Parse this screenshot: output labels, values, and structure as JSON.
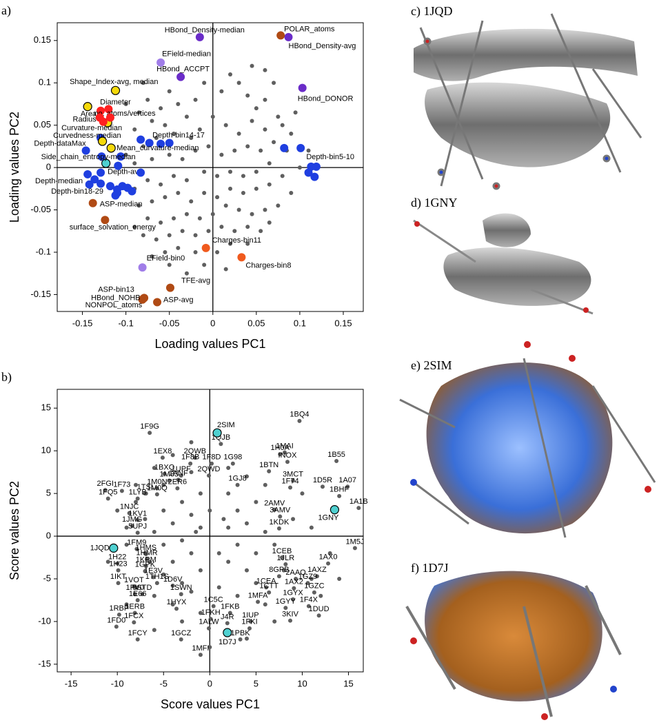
{
  "chart_data": [
    {
      "type": "scatter",
      "panel_label": "a)",
      "xlabel": "Loading values PC1",
      "ylabel": "Loading values PC2",
      "xlim": [
        -0.179,
        0.173
      ],
      "ylim": [
        -0.17,
        0.171
      ],
      "xticks": [
        -0.15,
        -0.1,
        -0.05,
        0,
        0.05,
        0.1,
        0.15
      ],
      "yticks": [
        -0.15,
        -0.1,
        -0.05,
        0,
        0.05,
        0.1,
        0.15
      ],
      "zero_lines": true,
      "series": [
        {
          "color": "#5f5f5f",
          "marker": "small",
          "x": [
            -0.085,
            -0.075,
            -0.06,
            -0.07,
            -0.09,
            -0.05,
            -0.04,
            -0.03,
            -0.02,
            -0.01,
            0.01,
            0.02,
            0.03,
            0.04,
            0.05,
            0.06,
            0.07,
            0.075,
            0.08,
            0.06,
            0.045,
            0.03,
            0.015,
            0.0,
            -0.015,
            -0.025,
            -0.045,
            -0.055,
            -0.065,
            -0.08,
            -0.1,
            -0.09,
            -0.07,
            -0.05,
            -0.035,
            -0.02,
            -0.005,
            0.01,
            0.025,
            0.04,
            0.055,
            0.07,
            0.085,
            0.09,
            0.065,
            0.05,
            0.035,
            0.02,
            0.005,
            -0.01,
            -0.03,
            -0.045,
            -0.06,
            -0.075,
            -0.09,
            -0.085,
            -0.07,
            -0.055,
            -0.04,
            -0.025,
            -0.01,
            0.005,
            0.02,
            0.035,
            0.05,
            0.065,
            0.08,
            0.09,
            0.075,
            0.06,
            0.045,
            0.03,
            0.015,
            0.0,
            -0.015,
            -0.03,
            -0.045,
            -0.06,
            -0.075,
            -0.09,
            -0.08,
            -0.065,
            -0.05,
            -0.035,
            -0.02,
            -0.005,
            0.01,
            0.025,
            0.04,
            0.055,
            0.065,
            0.02,
            0.005,
            -0.02,
            -0.04,
            -0.055,
            -0.07,
            0.04,
            0.015,
            -0.01,
            -0.03,
            -0.05,
            0.06,
            0.045,
            -0.08,
            -0.1,
            0.095,
            0.1,
            0.11
          ],
          "values": [
            0.065,
            0.08,
            0.07,
            0.055,
            0.045,
            0.09,
            0.075,
            0.06,
            0.08,
            0.1,
            0.09,
            0.11,
            0.1,
            0.085,
            0.07,
            0.08,
            0.1,
            0.06,
            0.05,
            0.045,
            0.055,
            0.04,
            0.05,
            0.06,
            0.045,
            0.035,
            0.04,
            0.05,
            0.035,
            0.025,
            0.015,
            0.005,
            0.01,
            0.015,
            0.01,
            0.02,
            0.025,
            0.015,
            0.02,
            0.025,
            0.02,
            0.03,
            0.02,
            0.04,
            0.005,
            -0.005,
            -0.01,
            -0.005,
            -0.01,
            -0.005,
            -0.015,
            -0.01,
            -0.02,
            -0.015,
            -0.025,
            -0.045,
            -0.04,
            -0.035,
            -0.03,
            -0.04,
            -0.03,
            -0.035,
            -0.025,
            -0.03,
            -0.025,
            -0.02,
            -0.01,
            -0.03,
            -0.045,
            -0.05,
            -0.055,
            -0.05,
            -0.045,
            -0.055,
            -0.06,
            -0.055,
            -0.06,
            -0.065,
            -0.06,
            -0.07,
            -0.08,
            -0.085,
            -0.08,
            -0.075,
            -0.08,
            -0.075,
            -0.07,
            -0.075,
            -0.07,
            -0.075,
            -0.065,
            -0.09,
            -0.1,
            -0.1,
            -0.095,
            -0.1,
            -0.105,
            -0.09,
            -0.12,
            -0.115,
            -0.125,
            -0.115,
            0.115,
            0.12,
            0.1,
            0.075,
            0.065,
            0.0,
            0.02
          ]
        },
        {
          "color": "#1f3fe0",
          "marker": "large",
          "x": [
            -0.146,
            -0.06,
            0.113,
            -0.129,
            -0.144,
            -0.11,
            -0.129,
            -0.083,
            -0.073,
            -0.05,
            -0.128,
            -0.109,
            -0.136,
            -0.142,
            -0.129,
            -0.118,
            -0.11,
            -0.104,
            -0.098,
            -0.093,
            -0.112,
            -0.083,
            0.082,
            0.101,
            0.119,
            0.11,
            0.117,
            -0.106
          ],
          "values": [
            0.02,
            0.028,
            0.001,
            -0.006,
            -0.008,
            -0.03,
            0.035,
            0.033,
            0.029,
            0.029,
            0.013,
            0.002,
            -0.014,
            -0.02,
            -0.019,
            -0.022,
            -0.026,
            -0.022,
            -0.024,
            -0.028,
            -0.033,
            -0.006,
            0.023,
            0.023,
            0.001,
            -0.006,
            -0.011,
            0.013
          ],
          "labels": [
            "Depth-dataMax",
            "Depth-bin14-17",
            "Depth-bin5-10",
            "Depth-av",
            "Depth-median",
            "Depth-bin18-29",
            null,
            null,
            null,
            null,
            null,
            null,
            null,
            null,
            null,
            null,
            null,
            null,
            null,
            null,
            null,
            null,
            null,
            null,
            null,
            null,
            null,
            null
          ]
        },
        {
          "color": "#f5d90a",
          "edgecolor": "#000000",
          "marker": "large",
          "x": [
            -0.112,
            -0.144,
            -0.121,
            -0.127,
            -0.117
          ],
          "values": [
            0.091,
            0.072,
            0.053,
            0.031,
            0.023
          ],
          "labels": [
            "Shape_Index-avg, median",
            "Diameter",
            "Curvature-median",
            "Curvedness-median",
            "Mean_curvature-median"
          ]
        },
        {
          "color": "#ff2020",
          "marker": "large",
          "x": [
            -0.129,
            -0.12,
            -0.13,
            -0.126,
            -0.118
          ],
          "values": [
            0.067,
            0.069,
            0.059,
            0.054,
            0.059
          ],
          "labels": [
            "Area",
            "no. atoms/vertices",
            "Radius",
            null,
            null
          ]
        },
        {
          "color": "#4fd0d0",
          "edgecolor": "#000000",
          "marker": "large",
          "x": [
            -0.123
          ],
          "values": [
            0.005
          ],
          "labels": [
            "Side_chain_entropy-median"
          ]
        },
        {
          "color": "#6a2cc8",
          "marker": "large",
          "x": [
            -0.015,
            0.087,
            -0.037,
            0.103
          ],
          "values": [
            0.154,
            0.154,
            0.107,
            0.094
          ],
          "labels": [
            "HBond_Density-median",
            "HBond_Density-avg",
            "HBond_ACCPT",
            "HBond_DONOR"
          ]
        },
        {
          "color": "#a07de8",
          "marker": "large",
          "x": [
            -0.06,
            -0.081
          ],
          "values": [
            0.124,
            -0.118
          ],
          "labels": [
            "EField-median",
            "EField-bin0"
          ]
        },
        {
          "color": "#f05a1e",
          "marker": "large",
          "x": [
            -0.008,
            0.033
          ],
          "values": [
            -0.095,
            -0.106
          ],
          "labels": [
            "Charges-bin11",
            "Charges-bin8"
          ]
        },
        {
          "color": "#b04a14",
          "marker": "large",
          "x": [
            0.078,
            -0.138,
            -0.124,
            -0.049,
            -0.08,
            -0.064,
            -0.081,
            -0.079
          ],
          "values": [
            0.156,
            -0.042,
            -0.062,
            -0.142,
            -0.155,
            -0.159,
            -0.156,
            -0.154
          ],
          "labels": [
            "POLAR_atoms",
            "ASP-median",
            "surface_solvation_energy",
            "TFE-avg",
            "ASP-bin13",
            "ASP-avg",
            "HBond_NOHB",
            "NONPOL_atoms"
          ]
        }
      ]
    },
    {
      "type": "scatter",
      "panel_label": "b)",
      "xlabel": "Score values PC1",
      "ylabel": "Score values PC2",
      "xlim": [
        -16.5,
        16.6
      ],
      "ylim": [
        -15.9,
        17.2
      ],
      "xticks": [
        -15,
        -10,
        -5,
        0,
        5,
        10,
        15
      ],
      "yticks": [
        -15,
        -10,
        -5,
        0,
        5,
        10,
        15
      ],
      "zero_lines": true,
      "series": [
        {
          "color": "#5f5f5f",
          "marker": "small",
          "x": [
            -8,
            -6,
            -4,
            -2,
            -1,
            -3,
            -5,
            -7,
            -9,
            -6,
            -4,
            -2,
            0,
            -1,
            -3,
            -5,
            -7,
            -4,
            -2,
            -1,
            -3,
            -5,
            -6,
            -4,
            -2,
            -1,
            2,
            3,
            4,
            5,
            6,
            2,
            3,
            5,
            6,
            4,
            2,
            1,
            3,
            5,
            6,
            2,
            4,
            -8,
            -10,
            -9,
            -11,
            -8,
            -9,
            -6,
            -3,
            1,
            7,
            8,
            11,
            12,
            9,
            10,
            11,
            13,
            -5,
            -7,
            -2,
            0,
            4,
            -1.5,
            1.5,
            -6.5,
            7,
            14
          ],
          "values": [
            6,
            8,
            9.5,
            7.5,
            5,
            4,
            3,
            2,
            1,
            0.5,
            1.5,
            2.5,
            3,
            1,
            -0.5,
            -1,
            -2,
            -3,
            -2,
            -4,
            -5.5,
            -4.5,
            -7,
            -8,
            -6.5,
            -9,
            5,
            3,
            1.5,
            4,
            6,
            1,
            -1,
            -2,
            0.5,
            -4,
            -3,
            -6,
            -7,
            -5.5,
            -8,
            8,
            7,
            4,
            3,
            -1,
            -3,
            -6,
            -8,
            -11,
            -10,
            -2,
            -1,
            -4,
            -5,
            -7,
            2,
            5,
            1,
            -2,
            6,
            5,
            11,
            -13,
            -12,
            0.5,
            2,
            -3,
            -10,
            -5
          ]
        },
        {
          "color": "#5f5f5f",
          "marker": "small",
          "x": [
            -6.5,
            9.7,
            1.2,
            8.1,
            7.6,
            8.4,
            13.7,
            -5.1,
            -1.6,
            -2.1,
            0.2,
            2.5,
            6.4,
            -0.1,
            -4.9,
            -4.4,
            -3.1,
            9.0,
            3.0,
            -3.4,
            8.7,
            12.2,
            14.9,
            -5.7,
            -3.5,
            -5.7,
            -6.9,
            -11.3,
            -9.5,
            14.0,
            -11.0,
            -7.8,
            16.1,
            7.0,
            7.6,
            -8.7,
            -7.8,
            -8.4,
            7.5,
            -7.8,
            -7.9,
            15.7,
            -6.9,
            -6.8,
            7.8,
            12.8,
            8.2,
            -10.0,
            -6.9,
            -9.9,
            -7.0,
            7.5,
            9.3,
            11.6,
            -6.1,
            10.6,
            -5.7,
            -9.9,
            -8.2,
            -4.0,
            6.1,
            9.1,
            11.3,
            -8.1,
            -7.3,
            -3.1,
            6.4,
            -7.8,
            9.0,
            5.2,
            0.4,
            8.2,
            10.7,
            -3.6,
            -8.1,
            2.2,
            -9.8,
            11.8,
            0.1,
            8.7,
            -8.2,
            1.9,
            4.4,
            -10.1,
            4.3,
            -0.1,
            -7.8,
            -3.1,
            3.3,
            -1.0
          ],
          "values": [
            12.1,
            13.5,
            10.8,
            9.8,
            9.6,
            8.7,
            8.8,
            9.2,
            9.2,
            8.5,
            8.5,
            8.5,
            7.6,
            7.1,
            7.3,
            6.5,
            7.1,
            6.5,
            6.0,
            6.6,
            5.7,
            5.8,
            5.8,
            5.6,
            5.6,
            4.9,
            5.0,
            5.4,
            5.3,
            4.7,
            4.4,
            4.4,
            3.3,
            3.1,
            2.3,
            2.7,
            1.9,
            1.2,
            0.9,
            0.4,
            -1.5,
            -1.4,
            -2.1,
            -2.7,
            -2.5,
            -3.2,
            -3.3,
            -3.2,
            -3.5,
            -4.0,
            -4.1,
            -4.7,
            -5.0,
            -4.7,
            -4.8,
            -5.5,
            -5.5,
            -5.5,
            -5.9,
            -5.8,
            -6.0,
            -6.1,
            -6.6,
            -6.8,
            -6.8,
            -6.8,
            -6.6,
            -7.5,
            -7.4,
            -7.7,
            -8.2,
            -8.4,
            -8.2,
            -8.5,
            -9.0,
            -9.0,
            -9.2,
            -9.3,
            -9.7,
            -9.9,
            -10.1,
            -10.2,
            -10.0,
            -10.6,
            -10.8,
            -10.8,
            -12.1,
            -12.1,
            -12.1,
            -13.9
          ],
          "labels": [
            "1F9G",
            "1BQ4",
            "1QJB",
            "1MAI",
            "1H0A",
            "INOX",
            "1B55",
            "1EX8",
            "2QWB",
            "1F8B",
            "1F8D",
            "1G98",
            "1BTN",
            "2QWD",
            "1BXQ",
            "1M83",
            "1UPF",
            "3MCT",
            "1GJ8",
            "1ANF",
            "1F74",
            "1D5R",
            "1A07",
            "1M0N",
            "2ER6",
            "1M0Q",
            "1TSL",
            "2FGI",
            "1F73",
            "1BHF",
            "1FQ5",
            "1LYB",
            "1A1B",
            "2AMV",
            "3AMV",
            "1NJC",
            "1KV1",
            "1JMG",
            "1KDK",
            "5UPJ",
            "1FM9",
            "1M5J",
            "1HMS",
            "1HMR",
            "1CEB",
            "1AX0",
            "1JLR",
            "1H22",
            "1KPM",
            "1H23",
            "1GPK",
            "8GPB",
            "2AAQ",
            "1AXZ",
            "1E3V",
            "1GZ9",
            "1TH1S",
            "1IKT",
            "1VOT",
            "1D6V",
            "1CEA",
            "1AX2",
            "1GZC",
            "1FV0",
            "5STD",
            "1SWN",
            "1CTT",
            "1E66",
            "1GYX",
            "1MFA",
            "1C5C",
            "1GYY",
            "1F4X",
            "1HYX",
            "1ERB",
            "1FKB",
            "1RBP",
            "1DUD",
            "1FKH",
            "3KIV",
            "1FCX",
            "J4R",
            "1IUP",
            "1FD0",
            "1FKI",
            "1ALW",
            "1FCY",
            "1GCZ",
            "1PBK",
            "1MFI"
          ]
        },
        {
          "color": "#4fd0d0",
          "edgecolor": "#000000",
          "marker": "large",
          "x": [
            0.8,
            -10.4,
            13.5,
            1.9
          ],
          "values": [
            12.1,
            -1.4,
            3.1,
            -11.3
          ],
          "labels": [
            "2SIM",
            "1JQD",
            "1GNY",
            "1D7J"
          ]
        }
      ]
    }
  ],
  "panels": [
    "c) 1JQD",
    "d) 1GNY",
    "e) 2SIM",
    "f) 1D7J"
  ]
}
